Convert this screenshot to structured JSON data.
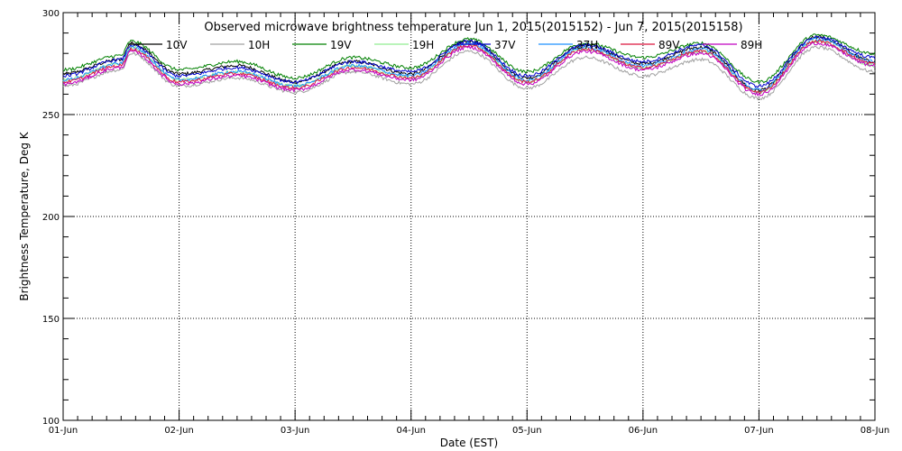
{
  "chart_data": {
    "type": "line",
    "title": "Observed microwave brightness temperature Jun  1, 2015(2015152) - Jun  7, 2015(2015158)",
    "xlabel": "Date (EST)",
    "ylabel": "Brightness Temperature, Deg K",
    "ylim": [
      100,
      300
    ],
    "xlim": [
      "2015-06-01",
      "2015-06-08"
    ],
    "y_ticks": [
      "100",
      "150",
      "200",
      "250",
      "300"
    ],
    "x_ticks": [
      "01-Jun",
      "02-Jun",
      "03-Jun",
      "04-Jun",
      "05-Jun",
      "06-Jun",
      "07-Jun",
      "08-Jun"
    ],
    "grid": true,
    "legend_position": "top",
    "series": [
      {
        "name": "10V",
        "color": "#000000",
        "x": [
          "06-01 00:00",
          "06-01 12:00",
          "06-01 14:00",
          "06-02 00:00",
          "06-02 12:00",
          "06-03 00:00",
          "06-03 12:00",
          "06-04 00:00",
          "06-04 12:00",
          "06-05 00:00",
          "06-05 12:00",
          "06-06 00:00",
          "06-06 12:00",
          "06-07 00:00",
          "06-07 12:00",
          "06-08 00:00"
        ],
        "values": [
          270,
          277,
          285,
          270,
          274,
          266,
          276,
          270,
          286,
          268,
          284,
          275,
          283,
          262,
          288,
          276
        ]
      },
      {
        "name": "10H",
        "color": "#a0a0a0",
        "x": [
          "06-01 00:00",
          "06-01 12:00",
          "06-01 14:00",
          "06-02 00:00",
          "06-02 12:00",
          "06-03 00:00",
          "06-03 12:00",
          "06-04 00:00",
          "06-04 12:00",
          "06-05 00:00",
          "06-05 12:00",
          "06-06 00:00",
          "06-06 12:00",
          "06-07 00:00",
          "06-07 12:00",
          "06-08 00:00"
        ],
        "values": [
          264,
          272,
          280,
          264,
          268,
          261,
          271,
          265,
          281,
          263,
          278,
          269,
          277,
          258,
          283,
          271
        ]
      },
      {
        "name": "19V",
        "color": "#008000",
        "x": [
          "06-01 00:00",
          "06-01 12:00",
          "06-01 14:00",
          "06-02 00:00",
          "06-02 12:00",
          "06-03 00:00",
          "06-03 12:00",
          "06-04 00:00",
          "06-04 12:00",
          "06-05 00:00",
          "06-05 12:00",
          "06-06 00:00",
          "06-06 12:00",
          "06-07 00:00",
          "06-07 12:00",
          "06-08 00:00"
        ],
        "values": [
          272,
          279,
          286,
          272,
          276,
          268,
          278,
          273,
          287,
          271,
          285,
          278,
          285,
          266,
          289,
          280
        ]
      },
      {
        "name": "19H",
        "color": "#90ee90",
        "x": [
          "06-01 00:00",
          "06-01 12:00",
          "06-01 14:00",
          "06-02 00:00",
          "06-02 12:00",
          "06-03 00:00",
          "06-03 12:00",
          "06-04 00:00",
          "06-04 12:00",
          "06-05 00:00",
          "06-05 12:00",
          "06-06 00:00",
          "06-06 12:00",
          "06-07 00:00",
          "06-07 12:00",
          "06-08 00:00"
        ],
        "values": [
          267,
          275,
          283,
          267,
          271,
          264,
          274,
          268,
          284,
          266,
          282,
          273,
          281,
          261,
          286,
          274
        ]
      },
      {
        "name": "37V",
        "color": "#0000cd",
        "x": [
          "06-01 00:00",
          "06-01 12:00",
          "06-01 14:00",
          "06-02 00:00",
          "06-02 12:00",
          "06-03 00:00",
          "06-03 12:00",
          "06-04 00:00",
          "06-04 12:00",
          "06-05 00:00",
          "06-05 12:00",
          "06-06 00:00",
          "06-06 12:00",
          "06-07 00:00",
          "06-07 12:00",
          "06-08 00:00"
        ],
        "values": [
          269,
          277,
          284,
          269,
          273,
          266,
          276,
          271,
          286,
          269,
          284,
          276,
          284,
          264,
          288,
          278
        ]
      },
      {
        "name": "37H",
        "color": "#1e90ff",
        "x": [
          "06-01 00:00",
          "06-01 12:00",
          "06-01 14:00",
          "06-02 00:00",
          "06-02 12:00",
          "06-03 00:00",
          "06-03 12:00",
          "06-04 00:00",
          "06-04 12:00",
          "06-05 00:00",
          "06-05 12:00",
          "06-06 00:00",
          "06-06 12:00",
          "06-07 00:00",
          "06-07 12:00",
          "06-08 00:00"
        ],
        "values": [
          267,
          275,
          283,
          267,
          271,
          264,
          274,
          269,
          285,
          267,
          283,
          274,
          282,
          262,
          287,
          276
        ]
      },
      {
        "name": "89V",
        "color": "#dc143c",
        "x": [
          "06-01 00:00",
          "06-01 12:00",
          "06-01 14:00",
          "06-02 00:00",
          "06-02 12:00",
          "06-03 00:00",
          "06-03 12:00",
          "06-04 00:00",
          "06-04 12:00",
          "06-05 00:00",
          "06-05 12:00",
          "06-06 00:00",
          "06-06 12:00",
          "06-07 00:00",
          "06-07 12:00",
          "06-08 00:00"
        ],
        "values": [
          266,
          274,
          282,
          266,
          270,
          263,
          273,
          268,
          284,
          266,
          282,
          273,
          281,
          261,
          286,
          275
        ]
      },
      {
        "name": "89H",
        "color": "#c000c0",
        "x": [
          "06-01 00:00",
          "06-01 12:00",
          "06-01 14:00",
          "06-02 00:00",
          "06-02 12:00",
          "06-03 00:00",
          "06-03 12:00",
          "06-04 00:00",
          "06-04 12:00",
          "06-05 00:00",
          "06-05 12:00",
          "06-06 00:00",
          "06-06 12:00",
          "06-07 00:00",
          "06-07 12:00",
          "06-08 00:00"
        ],
        "values": [
          265,
          273,
          281,
          265,
          269,
          262,
          272,
          267,
          283,
          265,
          281,
          272,
          280,
          260,
          285,
          274
        ]
      }
    ]
  }
}
